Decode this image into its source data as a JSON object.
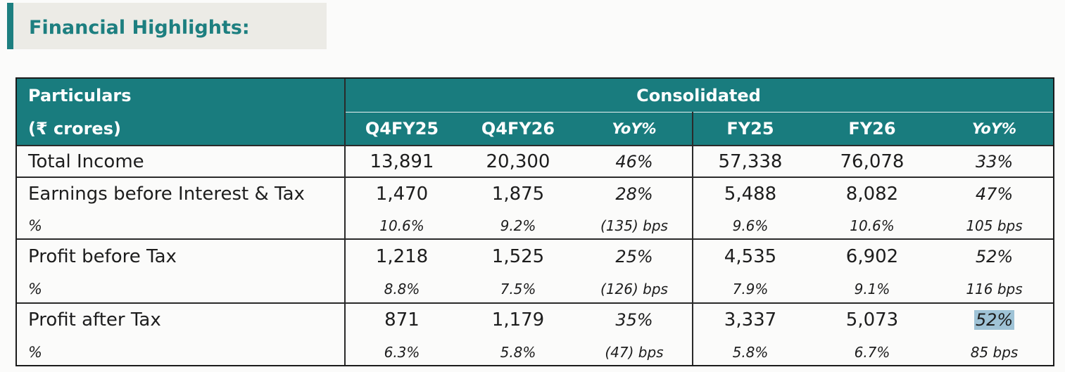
{
  "heading": "Financial Highlights:",
  "table": {
    "header": {
      "particulars": "Particulars",
      "unit": "(₹ crores)",
      "group": "Consolidated",
      "columns": [
        "Q4FY25",
        "Q4FY26",
        "YoY%",
        "FY25",
        "FY26",
        "YoY%"
      ]
    },
    "rows": [
      {
        "label": "Total Income",
        "values": [
          "13,891",
          "20,300",
          "46%",
          "57,338",
          "76,078",
          "33%"
        ]
      },
      {
        "label": "Earnings before Interest & Tax",
        "values": [
          "1,470",
          "1,875",
          "28%",
          "5,488",
          "8,082",
          "47%"
        ],
        "sub_label": "%",
        "sub_values": [
          "10.6%",
          "9.2%",
          "(135) bps",
          "9.6%",
          "10.6%",
          "105 bps"
        ]
      },
      {
        "label": "Profit before Tax",
        "values": [
          "1,218",
          "1,525",
          "25%",
          "4,535",
          "6,902",
          "52%"
        ],
        "sub_label": "%",
        "sub_values": [
          "8.8%",
          "7.5%",
          "(126) bps",
          "7.9%",
          "9.1%",
          "116 bps"
        ]
      },
      {
        "label": "Profit after Tax",
        "values": [
          "871",
          "1,179",
          "35%",
          "3,337",
          "5,073",
          "52%"
        ],
        "sub_label": "%",
        "sub_values": [
          "6.3%",
          "5.8%",
          "(47) bps",
          "5.8%",
          "6.7%",
          "85 bps"
        ]
      }
    ],
    "highlight_color": "#9fc3d6",
    "header_color": "#197c7e"
  }
}
